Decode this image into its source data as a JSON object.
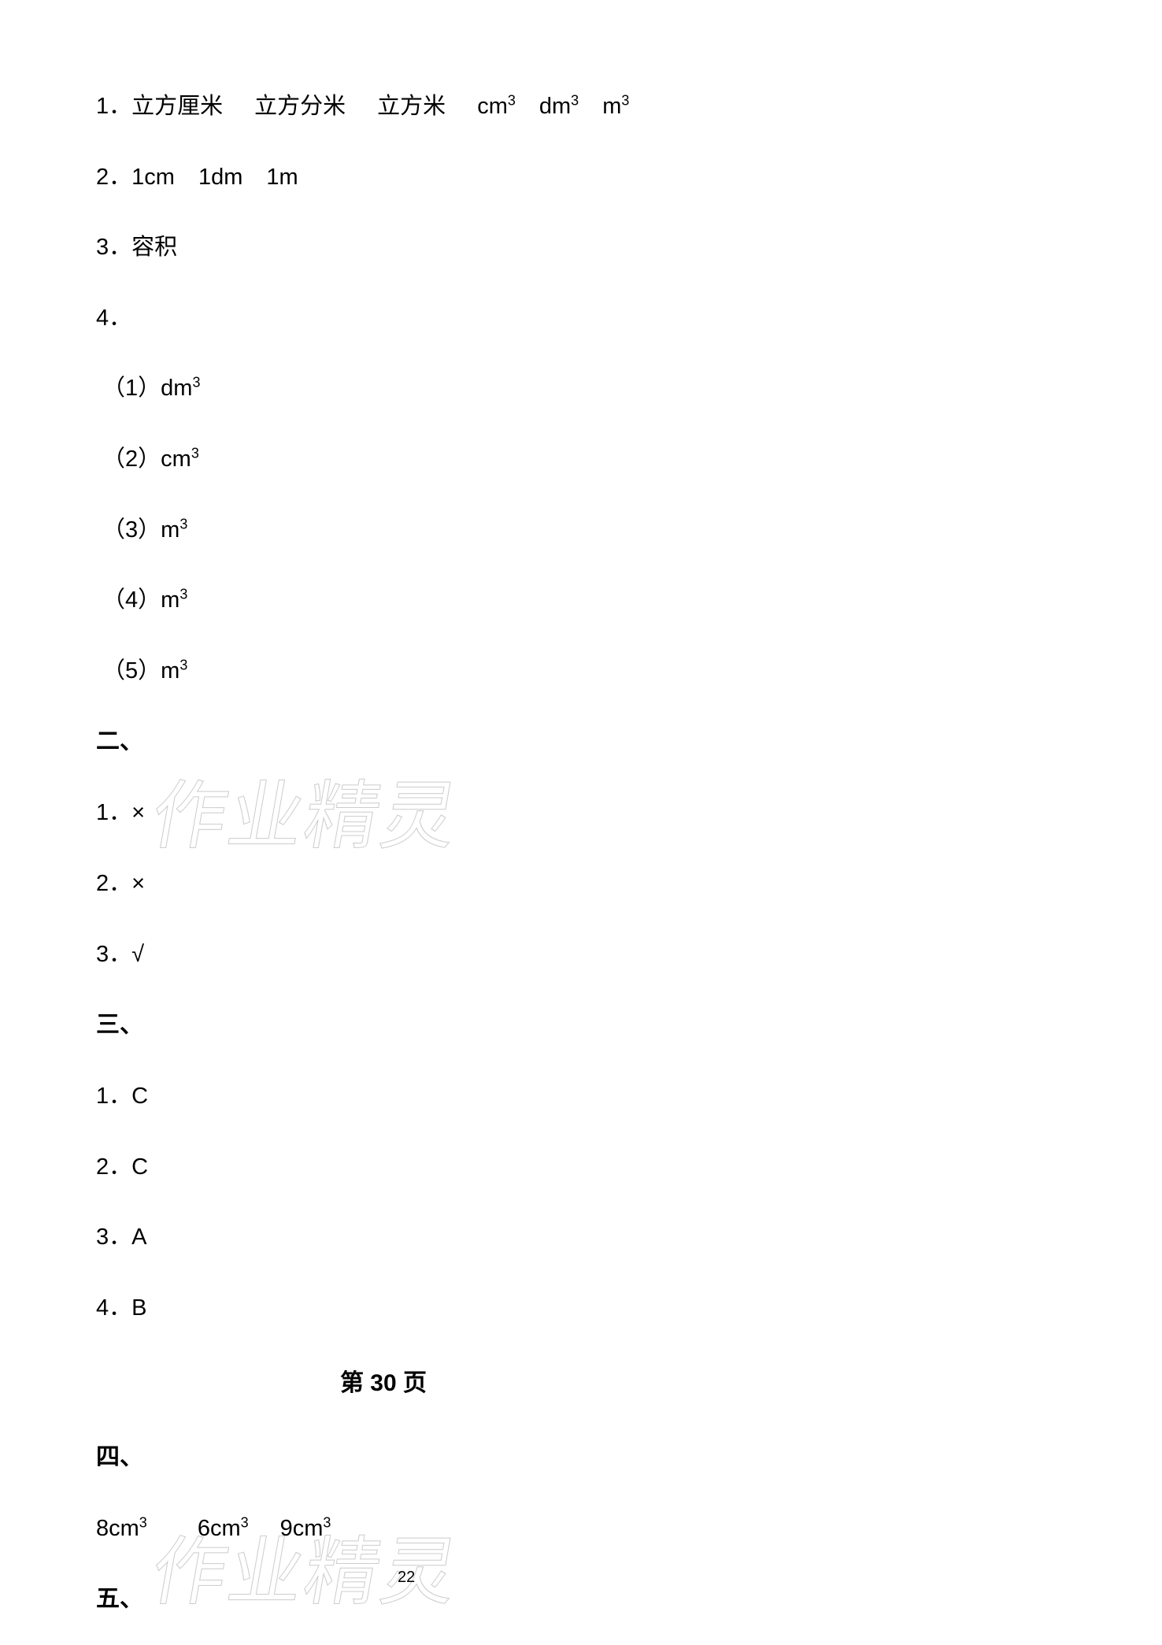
{
  "q1": {
    "prefix": "1．",
    "a": "立方厘米",
    "b": "立方分米",
    "c": "立方米",
    "d": "cm",
    "e": "dm",
    "f": "m",
    "sup": "3"
  },
  "q2": {
    "prefix": "2．",
    "a": "1cm",
    "b": "1dm",
    "c": "1m"
  },
  "q3": {
    "prefix": "3．",
    "text": "容积"
  },
  "q4": {
    "prefix": "4．",
    "sub1_prefix": "（1）",
    "sub1_val": "dm",
    "sub2_prefix": "（2）",
    "sub2_val": "cm",
    "sub3_prefix": "（3）",
    "sub3_val": "m",
    "sub4_prefix": "（4）",
    "sub4_val": "m",
    "sub5_prefix": "（5）",
    "sub5_val": "m",
    "sup": "3"
  },
  "section2": {
    "heading": "二、",
    "a1_prefix": "1．",
    "a1": "×",
    "a2_prefix": "2．",
    "a2": "×",
    "a3_prefix": "3．",
    "a3": "√"
  },
  "section3": {
    "heading": "三、",
    "a1_prefix": "1．",
    "a1": "C",
    "a2_prefix": "2．",
    "a2": "C",
    "a3_prefix": "3．",
    "a3": "A",
    "a4_prefix": "4．",
    "a4": "B"
  },
  "page_heading": "第 30 页",
  "section4": {
    "heading": "四、",
    "a": "8cm",
    "b": "6cm",
    "c": "9cm",
    "sup": "3"
  },
  "section5": {
    "heading": "五、"
  },
  "watermark": "作业精灵",
  "page_num": "22"
}
